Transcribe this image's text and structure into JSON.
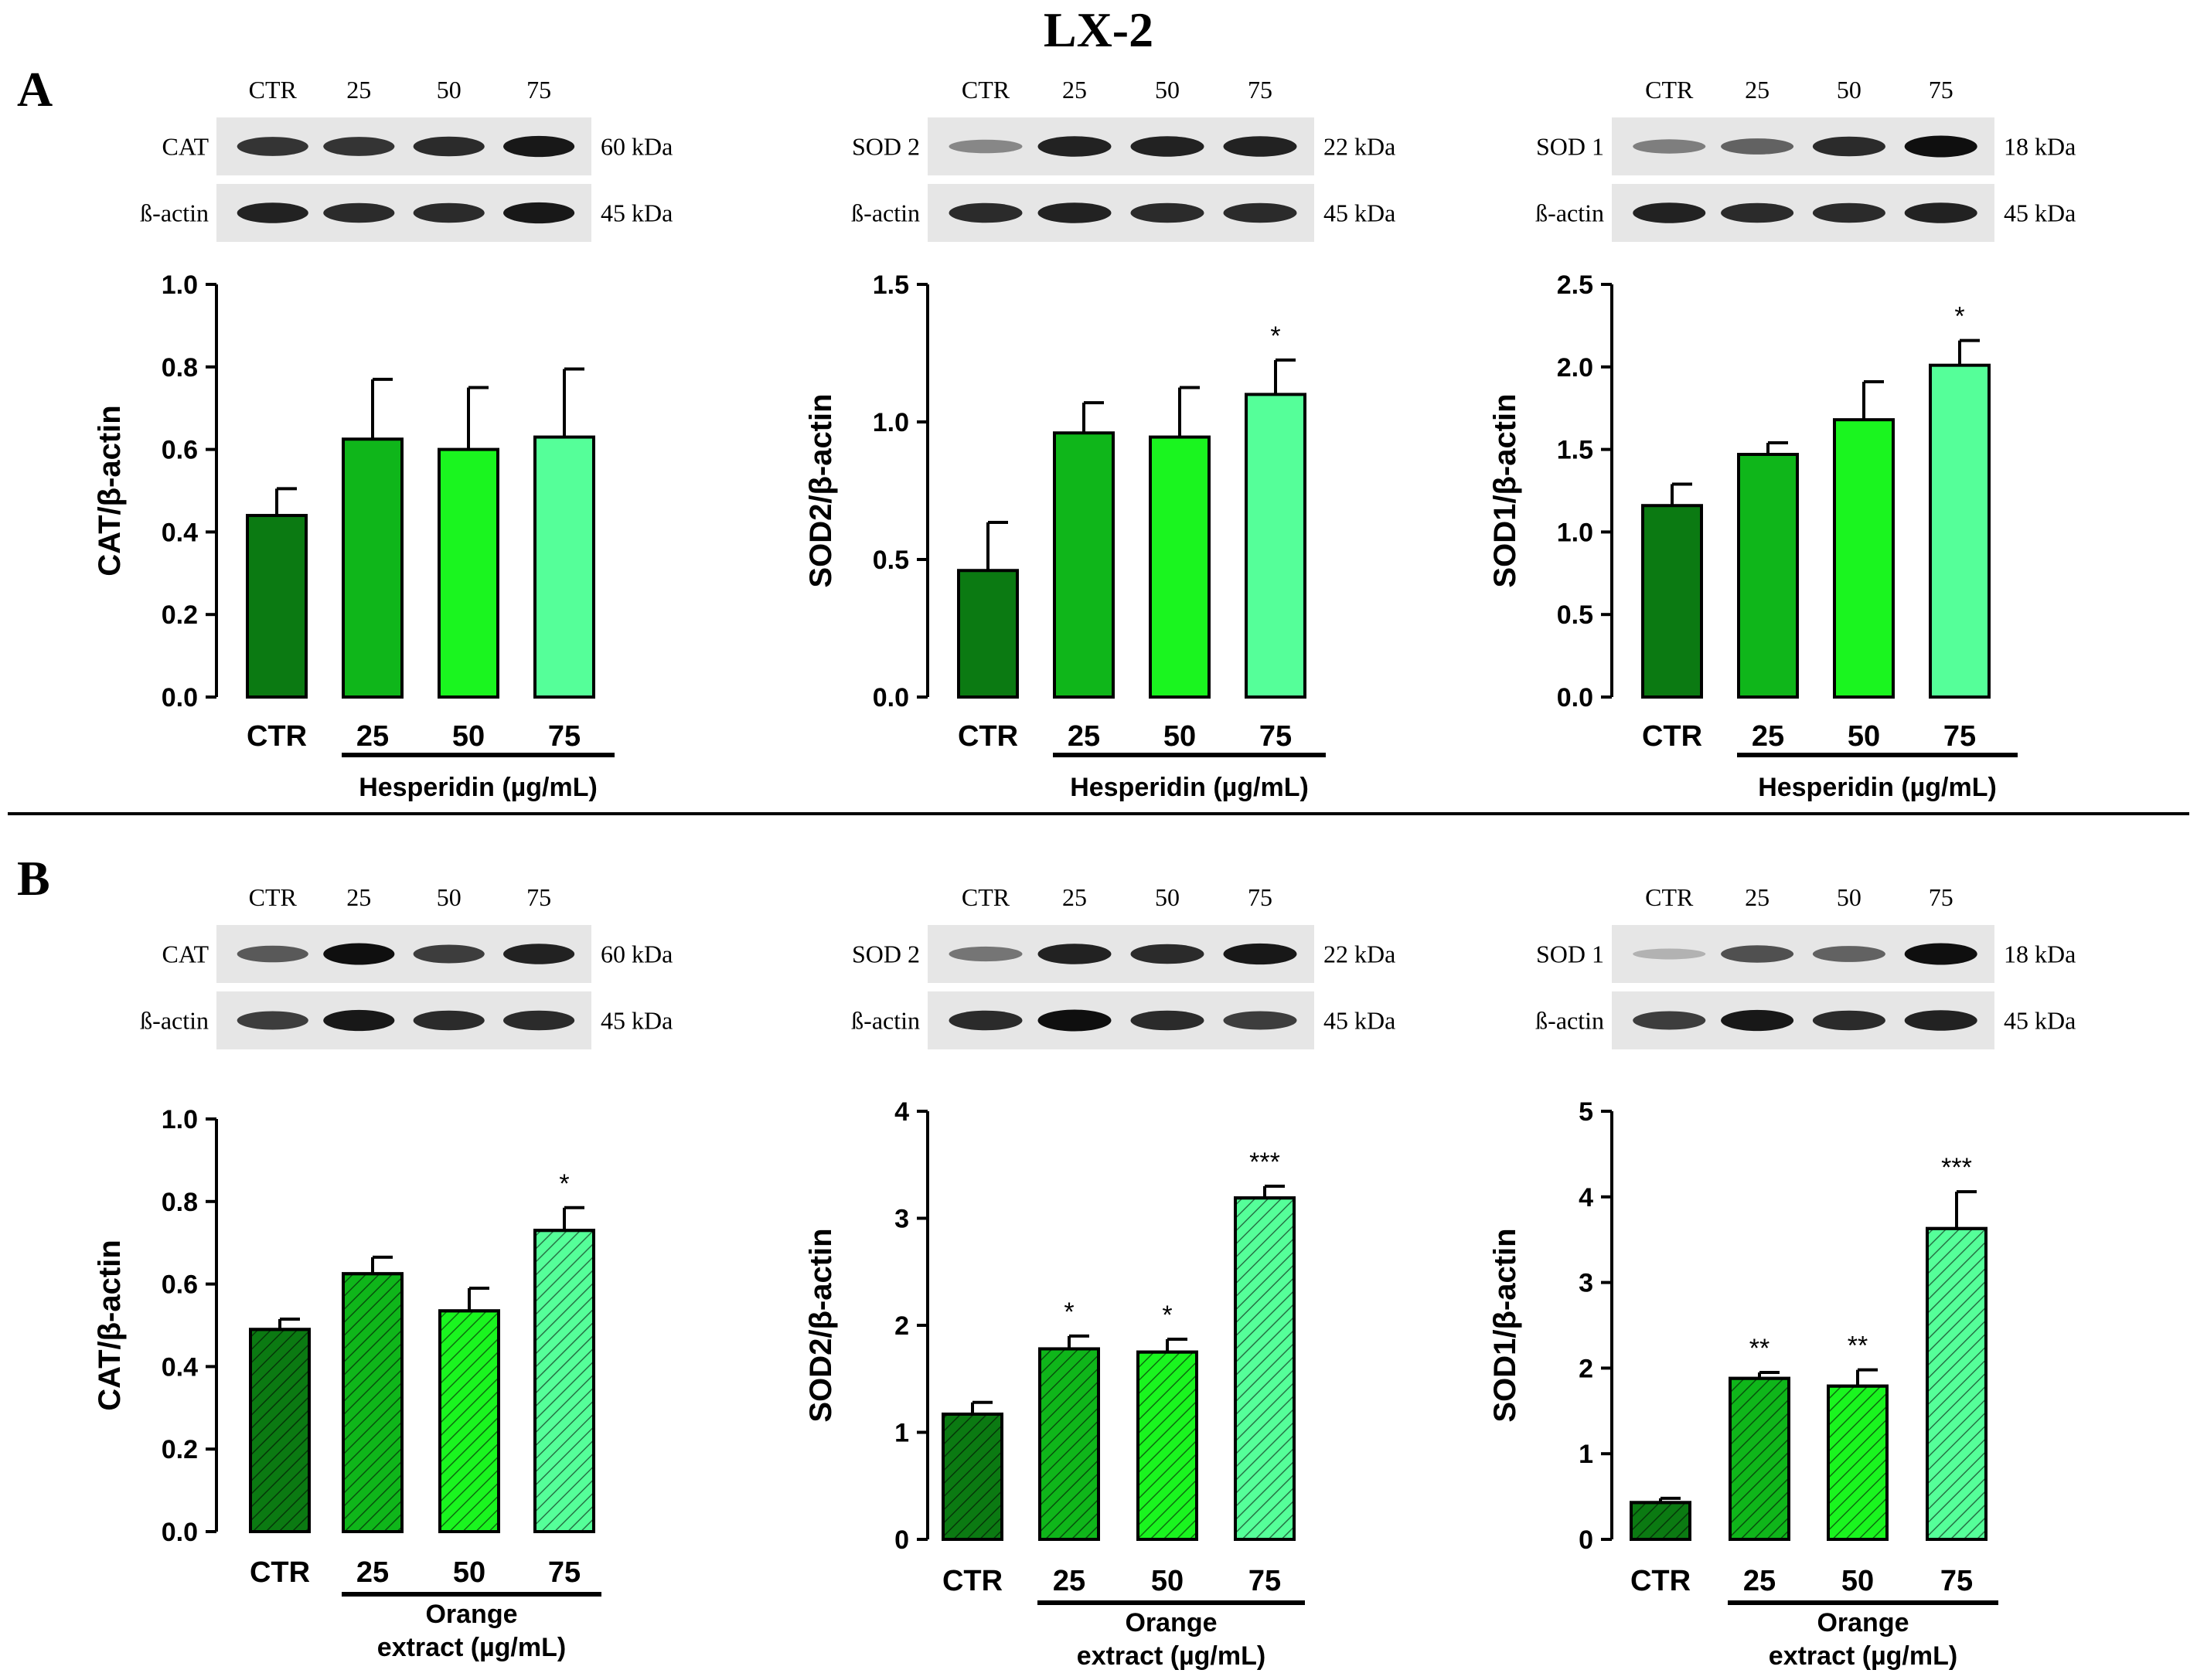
{
  "figure": {
    "title": "LX-2",
    "panel_letters": [
      "A",
      "B"
    ],
    "colors": {
      "ctr": "#0b7a12",
      "d25": "#0fb61a",
      "d50": "#1af51f",
      "d75": "#55ff99",
      "axis": "#000000",
      "separator": "#000000"
    }
  },
  "blots": [
    {
      "lanes": [
        "CTR",
        "25",
        "50",
        "75"
      ],
      "target": "CAT",
      "target_kda": "60 kDa",
      "loading": "ß-actin",
      "loading_kda": "45 kDa",
      "target_intensity": [
        0.8,
        0.8,
        0.85,
        0.95
      ],
      "loading_intensity": [
        0.9,
        0.85,
        0.85,
        0.95
      ]
    },
    {
      "lanes": [
        "CTR",
        "25",
        "50",
        "75"
      ],
      "target": "SOD 2",
      "target_kda": "22 kDa",
      "loading": "ß-actin",
      "loading_kda": "45 kDa",
      "target_intensity": [
        0.35,
        0.9,
        0.9,
        0.9
      ],
      "loading_intensity": [
        0.85,
        0.9,
        0.85,
        0.85
      ]
    },
    {
      "lanes": [
        "CTR",
        "25",
        "50",
        "75"
      ],
      "target": "SOD 1",
      "target_kda": "18 kDa",
      "loading": "ß-actin",
      "loading_kda": "45 kDa",
      "target_intensity": [
        0.4,
        0.55,
        0.85,
        1.0
      ],
      "loading_intensity": [
        0.9,
        0.85,
        0.85,
        0.9
      ]
    },
    {
      "lanes": [
        "CTR",
        "25",
        "50",
        "75"
      ],
      "target": "CAT",
      "target_kda": "60 kDa",
      "loading": "ß-actin",
      "loading_kda": "45 kDa",
      "target_intensity": [
        0.6,
        1.0,
        0.75,
        0.9
      ],
      "loading_intensity": [
        0.75,
        0.95,
        0.85,
        0.85
      ]
    },
    {
      "lanes": [
        "CTR",
        "25",
        "50",
        "75"
      ],
      "target": "SOD 2",
      "target_kda": "22 kDa",
      "loading": "ß-actin",
      "loading_kda": "45 kDa",
      "target_intensity": [
        0.45,
        0.9,
        0.85,
        0.95
      ],
      "loading_intensity": [
        0.85,
        1.0,
        0.85,
        0.75
      ]
    },
    {
      "lanes": [
        "CTR",
        "25",
        "50",
        "75"
      ],
      "target": "SOD 1",
      "target_kda": "18 kDa",
      "loading": "ß-actin",
      "loading_kda": "45 kDa",
      "target_intensity": [
        0.12,
        0.65,
        0.55,
        1.0
      ],
      "loading_intensity": [
        0.75,
        0.95,
        0.85,
        0.9
      ]
    }
  ],
  "chart_data": [
    {
      "type": "bar",
      "ylabel": "CAT/β-actin",
      "ylim": [
        0,
        1.0
      ],
      "yticks": [
        "0.0",
        "0.2",
        "0.4",
        "0.6",
        "0.8",
        "1.0"
      ],
      "categories": [
        "CTR",
        "25",
        "50",
        "75"
      ],
      "values": [
        0.44,
        0.625,
        0.6,
        0.63
      ],
      "errors": [
        0.065,
        0.145,
        0.15,
        0.165
      ],
      "significance": [
        "",
        "",
        "",
        ""
      ],
      "treatment_label": [
        "Hesperidin (µg/mL)"
      ],
      "hatched": false
    },
    {
      "type": "bar",
      "ylabel": "SOD2/β-actin",
      "ylim": [
        0,
        1.5
      ],
      "yticks": [
        "0.0",
        "0.5",
        "1.0",
        "1.5"
      ],
      "categories": [
        "CTR",
        "25",
        "50",
        "75"
      ],
      "values": [
        0.46,
        0.96,
        0.945,
        1.1
      ],
      "errors": [
        0.175,
        0.11,
        0.18,
        0.125
      ],
      "significance": [
        "",
        "",
        "",
        "*"
      ],
      "treatment_label": [
        "Hesperidin (µg/mL)"
      ],
      "hatched": false
    },
    {
      "type": "bar",
      "ylabel": "SOD1/β-actin",
      "ylim": [
        0,
        2.5
      ],
      "yticks": [
        "0.0",
        "0.5",
        "1.0",
        "1.5",
        "2.0",
        "2.5"
      ],
      "categories": [
        "CTR",
        "25",
        "50",
        "75"
      ],
      "values": [
        1.16,
        1.47,
        1.68,
        2.01
      ],
      "errors": [
        0.13,
        0.07,
        0.23,
        0.15
      ],
      "significance": [
        "",
        "",
        "",
        "*"
      ],
      "treatment_label": [
        "Hesperidin (µg/mL)"
      ],
      "hatched": false
    },
    {
      "type": "bar",
      "ylabel": "CAT/β-actin",
      "ylim": [
        0,
        1.0
      ],
      "yticks": [
        "0.0",
        "0.2",
        "0.4",
        "0.6",
        "0.8",
        "1.0"
      ],
      "categories": [
        "CTR",
        "25",
        "50",
        "75"
      ],
      "values": [
        0.49,
        0.625,
        0.535,
        0.73
      ],
      "errors": [
        0.025,
        0.04,
        0.055,
        0.055
      ],
      "significance": [
        "",
        "",
        "",
        "*"
      ],
      "treatment_label": [
        "Orange",
        "extract (µg/mL)"
      ],
      "hatched": true
    },
    {
      "type": "bar",
      "ylabel": "SOD2/β-actin",
      "ylim": [
        0,
        4
      ],
      "yticks": [
        "0",
        "1",
        "2",
        "3",
        "4"
      ],
      "categories": [
        "CTR",
        "25",
        "50",
        "75"
      ],
      "values": [
        1.17,
        1.78,
        1.75,
        3.19
      ],
      "errors": [
        0.11,
        0.12,
        0.12,
        0.11
      ],
      "significance": [
        "",
        "*",
        "*",
        "***"
      ],
      "treatment_label": [
        "Orange",
        "extract (µg/mL)"
      ],
      "hatched": true
    },
    {
      "type": "bar",
      "ylabel": "SOD1/β-actin",
      "ylim": [
        0,
        5
      ],
      "yticks": [
        "0",
        "1",
        "2",
        "3",
        "4",
        "5"
      ],
      "categories": [
        "CTR",
        "25",
        "50",
        "75"
      ],
      "values": [
        0.43,
        1.88,
        1.79,
        3.63
      ],
      "errors": [
        0.05,
        0.07,
        0.19,
        0.43
      ],
      "significance": [
        "",
        "**",
        "**",
        "***"
      ],
      "treatment_label": [
        "Orange",
        "extract (µg/mL)"
      ],
      "hatched": true
    }
  ]
}
